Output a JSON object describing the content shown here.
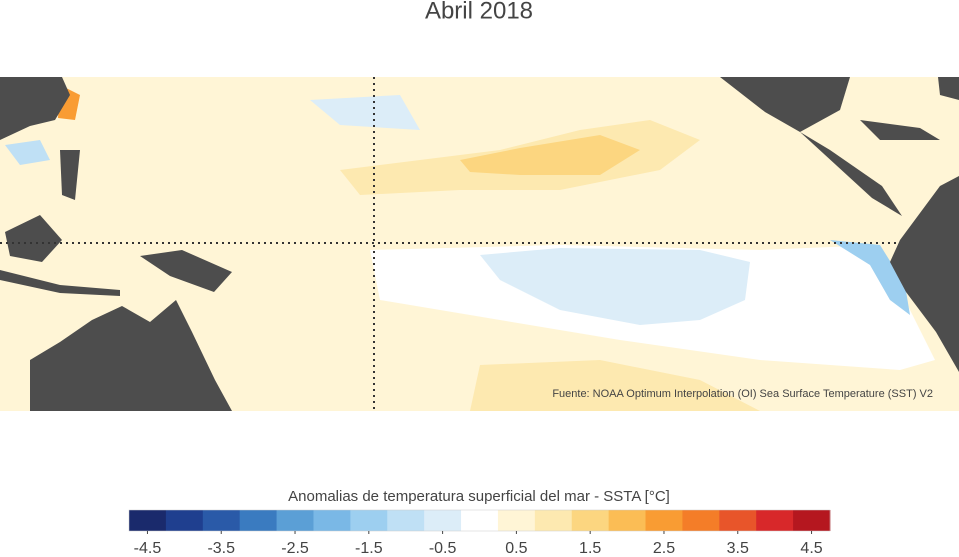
{
  "title": "Abril 2018",
  "source": "Fuente: NOAA Optimum Interpolation (OI) Sea Surface Temperature (SST) V2",
  "colorbar": {
    "label": "Anomalias de temperatura superficial del mar - SSTA  [°C]",
    "lim": [
      -4.75,
      4.75
    ],
    "ticks": [
      -4.5,
      -3.5,
      -2.5,
      -1.5,
      -0.5,
      0.5,
      1.5,
      2.5,
      3.5,
      4.5
    ],
    "colors": [
      "#1a2a6c",
      "#1f3f8f",
      "#2a5aa8",
      "#3a7bc0",
      "#5b9fd6",
      "#7ab8e6",
      "#9dcff0",
      "#bfe0f5",
      "#dcedf8",
      "#ffffff",
      "#fff5d6",
      "#fde9b0",
      "#fcd680",
      "#fbbd55",
      "#f99c33",
      "#f47d28",
      "#e8552a",
      "#d8282a",
      "#b5171f"
    ]
  }
}
